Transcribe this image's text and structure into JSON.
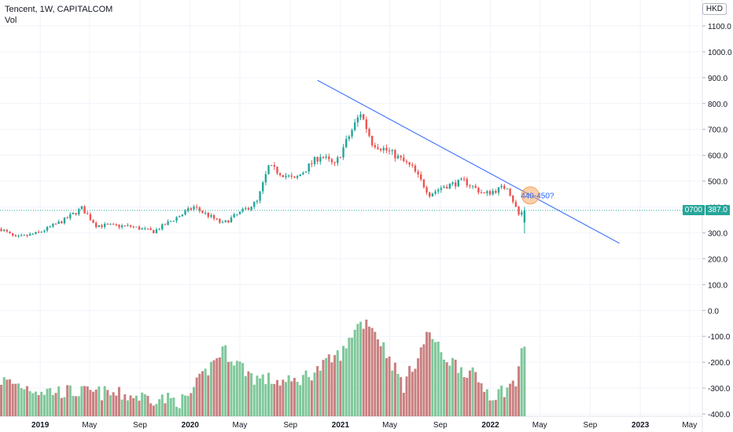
{
  "header": {
    "title": "Tencent, 1W, CAPITALCOM",
    "volume_label": "Vol",
    "currency": "HKD"
  },
  "last": {
    "symbol": "0700",
    "price_label": "387.0",
    "price": 387.0
  },
  "annotation": {
    "text": "440-450?"
  },
  "colors": {
    "up": "#26a69a",
    "down": "#ef5350",
    "vol_up": "#7fc79a",
    "vol_down": "#c97f7f",
    "trendline": "#2962ff",
    "last_price": "#26a69a",
    "annotation": "#f4a259"
  },
  "chart_data": {
    "type": "candlestick",
    "title": "Tencent, 1W, CAPITALCOM",
    "ylim": [
      -400,
      1150
    ],
    "y_ticks": [
      "1100.0",
      "1000.0",
      "900.0",
      "800.0",
      "700.0",
      "600.0",
      "500.0",
      "400.0",
      "300.0",
      "200.0",
      "100.0",
      "0.0",
      "-100.0",
      "-200.0",
      "-300.0",
      "-400.0"
    ],
    "y_tick_values": [
      1100,
      1000,
      900,
      800,
      700,
      600,
      500,
      400,
      300,
      200,
      100,
      0,
      -100,
      -200,
      -300,
      -400
    ],
    "x_ticks": [
      "2019",
      "May",
      "Sep",
      "2020",
      "May",
      "Sep",
      "2021",
      "May",
      "Sep",
      "2022",
      "May",
      "Sep",
      "2023",
      "May"
    ],
    "x_tick_dates": [
      "2019-01-01",
      "2019-05-01",
      "2019-09-01",
      "2020-01-01",
      "2020-05-01",
      "2020-09-01",
      "2021-01-01",
      "2021-05-01",
      "2021-09-01",
      "2022-01-01",
      "2022-05-01",
      "2022-09-01",
      "2023-01-01",
      "2023-05-01"
    ],
    "x_range": [
      "2018-09-25",
      "2023-06-01"
    ],
    "grid": true,
    "price_anchors": [
      [
        "2018-09-28",
        315
      ],
      [
        "2018-11-02",
        280
      ],
      [
        "2018-12-28",
        300
      ],
      [
        "2019-03-01",
        350
      ],
      [
        "2019-04-12",
        395
      ],
      [
        "2019-05-17",
        330
      ],
      [
        "2019-08-09",
        325
      ],
      [
        "2019-10-04",
        305
      ],
      [
        "2020-01-10",
        400
      ],
      [
        "2020-03-20",
        335
      ],
      [
        "2020-06-12",
        420
      ],
      [
        "2020-07-10",
        555
      ],
      [
        "2020-09-11",
        505
      ],
      [
        "2020-11-13",
        600
      ],
      [
        "2020-12-18",
        560
      ],
      [
        "2021-02-19",
        765
      ],
      [
        "2021-03-19",
        650
      ],
      [
        "2021-05-14",
        600
      ],
      [
        "2021-06-25",
        550
      ],
      [
        "2021-08-06",
        450
      ],
      [
        "2021-09-10",
        480
      ],
      [
        "2021-10-29",
        500
      ],
      [
        "2021-12-17",
        450
      ],
      [
        "2022-02-11",
        480
      ],
      [
        "2022-03-11",
        370
      ],
      [
        "2022-03-25",
        387
      ]
    ],
    "volume_profile": [
      [
        "2018-09-28",
        -270
      ],
      [
        "2019-01-04",
        -310
      ],
      [
        "2019-06-07",
        -320
      ],
      [
        "2019-12-20",
        -350
      ],
      [
        "2020-03-20",
        -150
      ],
      [
        "2020-06-05",
        -260
      ],
      [
        "2020-09-04",
        -280
      ],
      [
        "2020-11-06",
        -230
      ],
      [
        "2021-01-15",
        -150
      ],
      [
        "2021-02-05",
        -60
      ],
      [
        "2021-03-12",
        -40
      ],
      [
        "2021-04-16",
        -140
      ],
      [
        "2021-06-04",
        -290
      ],
      [
        "2021-08-06",
        -80
      ],
      [
        "2021-09-03",
        -170
      ],
      [
        "2021-11-19",
        -250
      ],
      [
        "2022-01-07",
        -330
      ],
      [
        "2022-03-04",
        -280
      ],
      [
        "2022-03-18",
        -140
      ]
    ],
    "trendline": {
      "from": [
        "2020-11-06",
        890
      ],
      "to": [
        "2022-11-11",
        260
      ]
    },
    "last_price": 387.0,
    "annotation": {
      "text": "440-450?",
      "date": "2022-04-08",
      "value": 445
    }
  }
}
